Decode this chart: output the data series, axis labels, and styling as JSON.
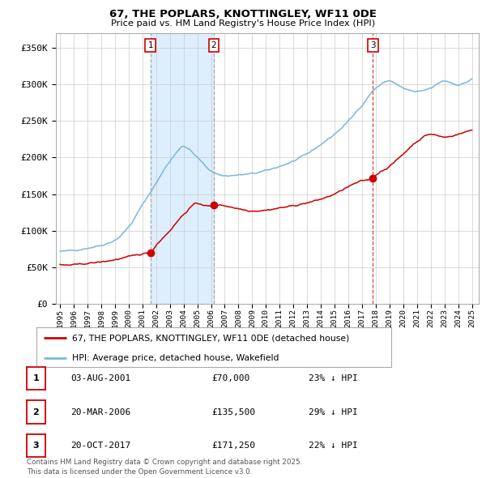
{
  "title": "67, THE POPLARS, KNOTTINGLEY, WF11 0DE",
  "subtitle": "Price paid vs. HM Land Registry's House Price Index (HPI)",
  "ylabel_ticks": [
    "£0",
    "£50K",
    "£100K",
    "£150K",
    "£200K",
    "£250K",
    "£300K",
    "£350K"
  ],
  "ytick_vals": [
    0,
    50000,
    100000,
    150000,
    200000,
    250000,
    300000,
    350000
  ],
  "ylim": [
    0,
    370000
  ],
  "sale_year_nums": [
    2001.583,
    2006.208,
    2017.792
  ],
  "sale_prices": [
    70000,
    135500,
    171250
  ],
  "sale_labels": [
    "1",
    "2",
    "3"
  ],
  "legend_red": "67, THE POPLARS, KNOTTINGLEY, WF11 0DE (detached house)",
  "legend_blue": "HPI: Average price, detached house, Wakefield",
  "table_data": [
    [
      "1",
      "03-AUG-2001",
      "£70,000",
      "23% ↓ HPI"
    ],
    [
      "2",
      "20-MAR-2006",
      "£135,500",
      "29% ↓ HPI"
    ],
    [
      "3",
      "20-OCT-2017",
      "£171,250",
      "22% ↓ HPI"
    ]
  ],
  "footnote": "Contains HM Land Registry data © Crown copyright and database right 2025.\nThis data is licensed under the Open Government Licence v3.0.",
  "red_color": "#cc0000",
  "blue_color": "#7ab8d9",
  "shade_color": "#ddeeff",
  "grid_color": "#cccccc",
  "bg_color": "#ffffff",
  "xlim_left": 1994.7,
  "xlim_right": 2025.5
}
